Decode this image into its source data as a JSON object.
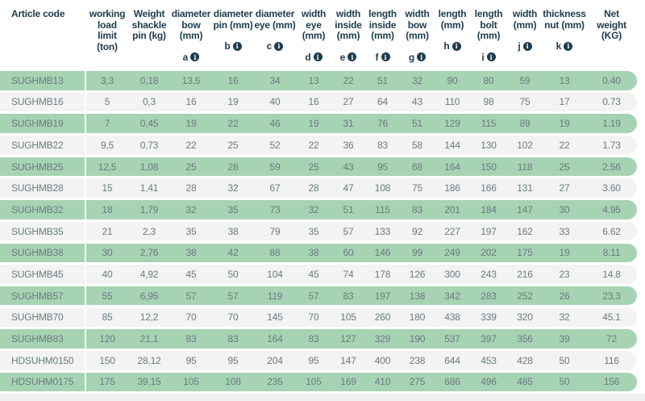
{
  "colors": {
    "row-green": "#a6d3b3",
    "row-light": "#f2f3f2",
    "header-text": "#1c3b4c",
    "data-text": "#6b7a81",
    "footer-strip": "#eff1ef",
    "divider": "#ffffff"
  },
  "table": {
    "columns": [
      {
        "key": "article_code",
        "label": "Article code",
        "letter": null
      },
      {
        "key": "working_load_limit_ton",
        "label": "working\nload\nlimit\n(ton)",
        "letter": null
      },
      {
        "key": "weight_shackle_pin_kg",
        "label": "Weight\nshackle\npin (kg)",
        "letter": null
      },
      {
        "key": "diameter_bow_mm",
        "label": "diameter\nbow\n(mm)",
        "letter": "a"
      },
      {
        "key": "diameter_pin_mm",
        "label": "diameter\npin (mm)",
        "letter": "b"
      },
      {
        "key": "diameter_eye_mm",
        "label": "diameter\neye (mm)",
        "letter": "c"
      },
      {
        "key": "width_eye_mm",
        "label": "width\neye\n(mm)",
        "letter": "d"
      },
      {
        "key": "width_inside_mm",
        "label": "width\ninside\n(mm)",
        "letter": "e"
      },
      {
        "key": "length_inside_mm",
        "label": "length\ninside\n(mm)",
        "letter": "f"
      },
      {
        "key": "width_bow_mm",
        "label": "width\nbow\n(mm)",
        "letter": "g"
      },
      {
        "key": "length_mm",
        "label": "length\n(mm)",
        "letter": "h"
      },
      {
        "key": "length_bolt_mm",
        "label": "length\nbolt\n(mm)",
        "letter": "i"
      },
      {
        "key": "width_mm",
        "label": "width\n(mm)",
        "letter": "j"
      },
      {
        "key": "thickness_nut_mm",
        "label": "thickness\nnut (mm)",
        "letter": "k"
      },
      {
        "key": "net_weight_kg",
        "label": "Net\nweight\n(KG)",
        "letter": null
      }
    ],
    "info_icon_glyph": "i",
    "rows": [
      [
        "SUGHMB13",
        "3,3",
        "0,18",
        "13,5",
        "16",
        "34",
        "13",
        "22",
        "51",
        "32",
        "90",
        "80",
        "59",
        "13",
        "0.40"
      ],
      [
        "SUGHMB16",
        "5",
        "0,3",
        "16",
        "19",
        "40",
        "16",
        "27",
        "64",
        "43",
        "110",
        "98",
        "75",
        "17",
        "0.73"
      ],
      [
        "SUGHMB19",
        "7",
        "0,45",
        "19",
        "22",
        "46",
        "19",
        "31",
        "76",
        "51",
        "129",
        "115",
        "89",
        "19",
        "1.19"
      ],
      [
        "SUGHMB22",
        "9,5",
        "0,73",
        "22",
        "25",
        "52",
        "22",
        "36",
        "83",
        "58",
        "144",
        "130",
        "102",
        "22",
        "1.73"
      ],
      [
        "SUGHMB25",
        "12,5",
        "1,08",
        "25",
        "28",
        "59",
        "25",
        "43",
        "95",
        "68",
        "164",
        "150",
        "118",
        "25",
        "2.56"
      ],
      [
        "SUGHMB28",
        "15",
        "1,41",
        "28",
        "32",
        "67",
        "28",
        "47",
        "108",
        "75",
        "186",
        "166",
        "131",
        "27",
        "3.60"
      ],
      [
        "SUGHMB32",
        "18",
        "1,79",
        "32",
        "35",
        "73",
        "32",
        "51",
        "115",
        "83",
        "201",
        "184",
        "147",
        "30",
        "4.95"
      ],
      [
        "SUGHMB35",
        "21",
        "2,3",
        "35",
        "38",
        "79",
        "35",
        "57",
        "133",
        "92",
        "227",
        "197",
        "162",
        "33",
        "6.62"
      ],
      [
        "SUGHMB38",
        "30",
        "2,76",
        "38",
        "42",
        "88",
        "38",
        "60",
        "146",
        "99",
        "249",
        "202",
        "175",
        "19",
        "8.11"
      ],
      [
        "SUGHMB45",
        "40",
        "4,92",
        "45",
        "50",
        "104",
        "45",
        "74",
        "178",
        "126",
        "300",
        "243",
        "216",
        "23",
        "14.8"
      ],
      [
        "SUGHMB57",
        "55",
        "6,95",
        "57",
        "57",
        "119",
        "57",
        "83",
        "197",
        "138",
        "342",
        "283",
        "252",
        "26",
        "23.3"
      ],
      [
        "SUGHMB70",
        "85",
        "12,2",
        "70",
        "70",
        "145",
        "70",
        "105",
        "260",
        "180",
        "438",
        "339",
        "320",
        "32",
        "45.1"
      ],
      [
        "SUGHMB83",
        "120",
        "21,1",
        "83",
        "83",
        "164",
        "83",
        "127",
        "329",
        "190",
        "537",
        "397",
        "356",
        "39",
        "72"
      ],
      [
        "HDSUHM0150",
        "150",
        "28,12",
        "95",
        "95",
        "204",
        "95",
        "147",
        "400",
        "238",
        "644",
        "453",
        "428",
        "50",
        "116"
      ],
      [
        "HDSUHM0175",
        "175",
        "39,15",
        "105",
        "108",
        "235",
        "105",
        "169",
        "410",
        "275",
        "686",
        "496",
        "485",
        "50",
        "156"
      ]
    ]
  }
}
